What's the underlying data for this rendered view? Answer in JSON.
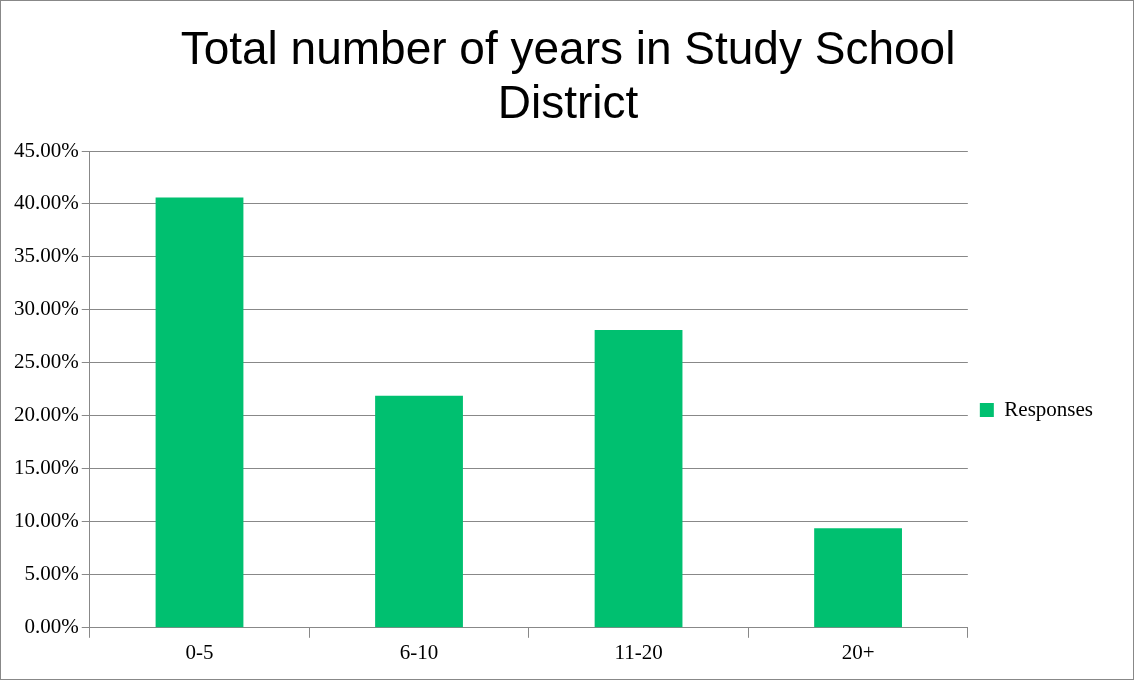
{
  "chart_data": {
    "type": "bar",
    "title": "Total number of years in Study School District",
    "categories": [
      "0-5",
      "6-10",
      "11-20",
      "20+"
    ],
    "series": [
      {
        "name": "Responses",
        "color": "#00c070",
        "values": [
          40.6,
          21.9,
          28.1,
          9.4
        ]
      }
    ],
    "ylim": [
      0,
      45
    ],
    "yticks": [
      {
        "value": 0,
        "label": "0.00%"
      },
      {
        "value": 5,
        "label": "5.00%"
      },
      {
        "value": 10,
        "label": "10.00%"
      },
      {
        "value": 15,
        "label": "15.00%"
      },
      {
        "value": 20,
        "label": "20.00%"
      },
      {
        "value": 25,
        "label": "25.00%"
      },
      {
        "value": 30,
        "label": "30.00%"
      },
      {
        "value": 35,
        "label": "35.00%"
      },
      {
        "value": 40,
        "label": "40.00%"
      },
      {
        "value": 45,
        "label": "45.00%"
      }
    ],
    "grid": "y",
    "legend": "right"
  }
}
